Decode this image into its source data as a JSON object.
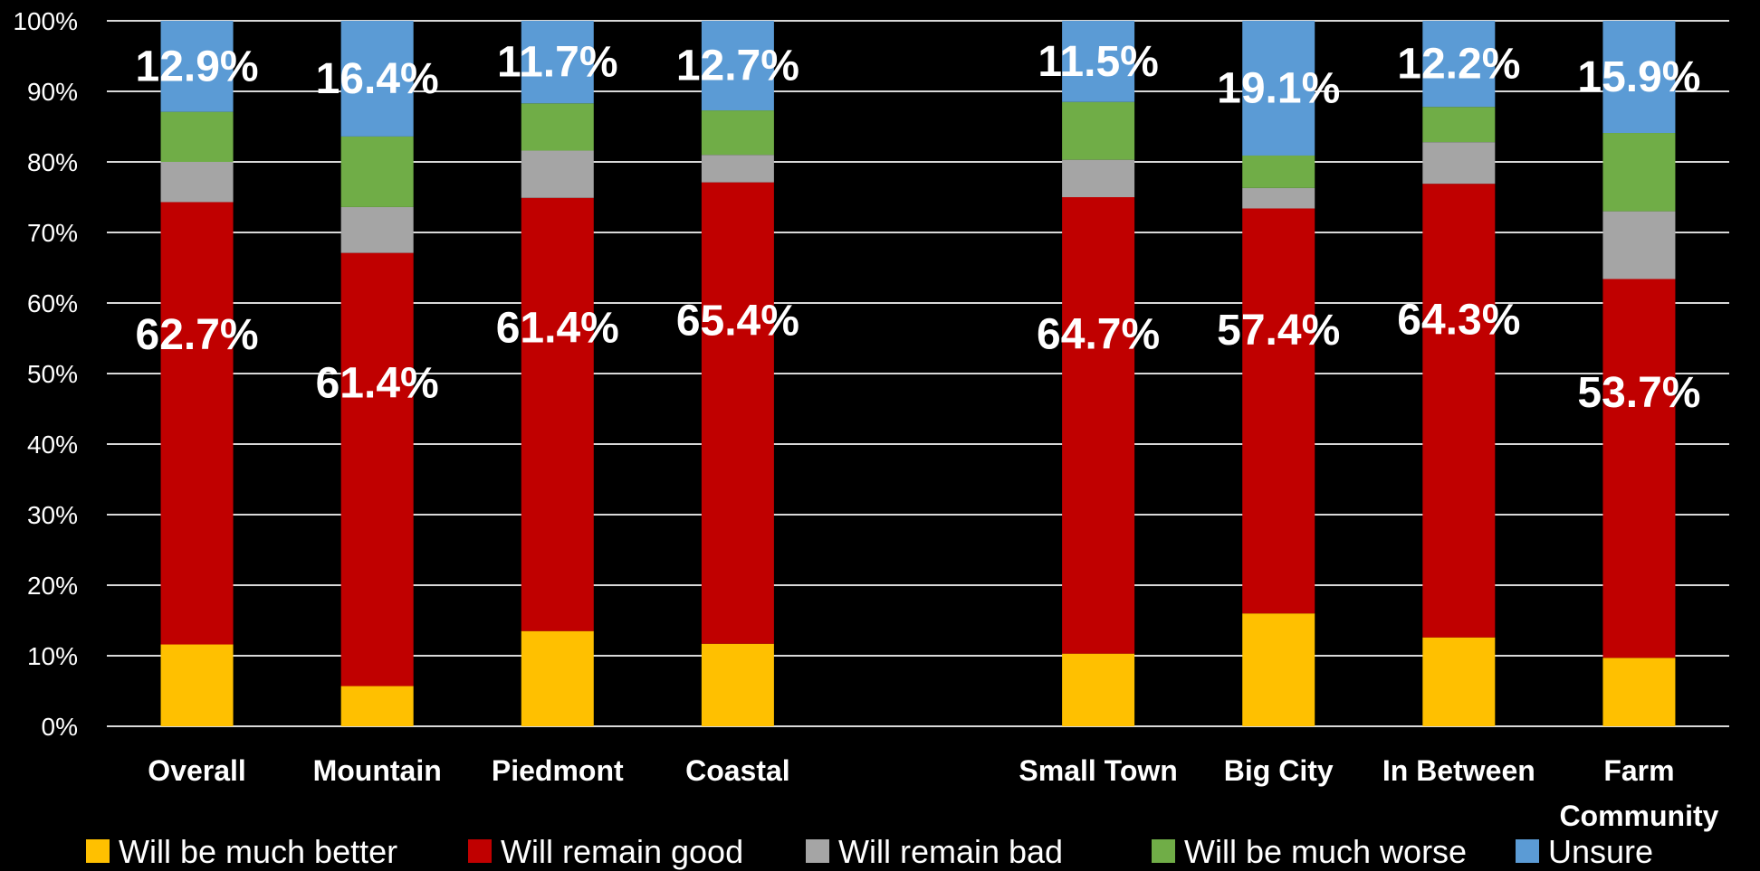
{
  "chart_data": {
    "type": "bar",
    "stacked": true,
    "percent": true,
    "title": "",
    "xlabel": "",
    "ylabel": "",
    "ylim": [
      0,
      100
    ],
    "y_ticks": [
      "0%",
      "10%",
      "20%",
      "30%",
      "40%",
      "50%",
      "60%",
      "70%",
      "80%",
      "90%",
      "100%"
    ],
    "grid": true,
    "legend_position": "bottom",
    "categories": [
      "Overall",
      "Mountain",
      "Piedmont",
      "Coastal",
      "",
      "Small Town",
      "Big City",
      "In Between",
      "Farm Community"
    ],
    "category_labels": [
      [
        "Overall"
      ],
      [
        "Mountain"
      ],
      [
        "Piedmont"
      ],
      [
        "Coastal"
      ],
      [],
      [
        "Small Town"
      ],
      [
        "Big City"
      ],
      [
        "In Between"
      ],
      [
        "Farm",
        "Community"
      ]
    ],
    "series": [
      {
        "name": "Will be much better",
        "color": "#FFC000",
        "values": [
          11.6,
          5.7,
          13.5,
          11.7,
          null,
          10.3,
          16.0,
          12.6,
          9.7
        ]
      },
      {
        "name": "Will remain good",
        "color": "#C00000",
        "values": [
          62.7,
          61.4,
          61.4,
          65.4,
          null,
          64.7,
          57.4,
          64.3,
          53.7
        ]
      },
      {
        "name": "Will remain bad",
        "color": "#A5A5A5",
        "values": [
          5.7,
          6.5,
          6.7,
          3.9,
          null,
          5.3,
          2.9,
          5.9,
          9.6
        ]
      },
      {
        "name": "Will be much worse",
        "color": "#70AD47",
        "values": [
          7.1,
          10.0,
          6.7,
          6.3,
          null,
          8.2,
          4.6,
          5.0,
          11.1
        ]
      },
      {
        "name": "Unsure",
        "color": "#5B9BD5",
        "values": [
          12.9,
          16.4,
          11.7,
          12.7,
          null,
          11.5,
          19.1,
          12.2,
          15.9
        ]
      }
    ],
    "data_labels": {
      "Will remain good": [
        "62.7%",
        "61.4%",
        "61.4%",
        "65.4%",
        "",
        "64.7%",
        "57.4%",
        "64.3%",
        "53.7%"
      ],
      "Unsure": [
        "12.9%",
        "16.4%",
        "11.7%",
        "12.7%",
        "",
        "11.5%",
        "19.1%",
        "12.2%",
        "15.9%"
      ]
    }
  }
}
